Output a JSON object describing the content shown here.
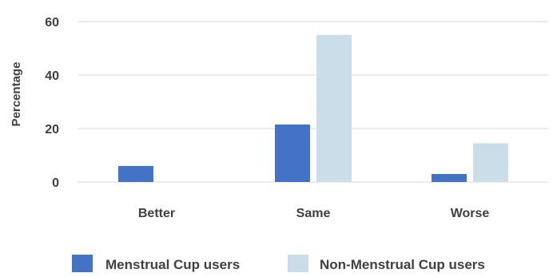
{
  "chart_data": {
    "type": "bar",
    "title": "",
    "xlabel": "",
    "ylabel": "Percentage",
    "categories": [
      "Better",
      "Same",
      "Worse"
    ],
    "series": [
      {
        "name": "Menstrual Cup users",
        "values": [
          6,
          21.5,
          3
        ]
      },
      {
        "name": "Non-Menstrual Cup users",
        "values": [
          0,
          55,
          14.5
        ]
      }
    ],
    "ylim": [
      0,
      60
    ],
    "yticks": [
      0,
      20,
      40,
      60
    ],
    "grid": true,
    "legend": "bottom",
    "colors": [
      "#4472c4",
      "#cadde9"
    ],
    "gridColor": "#d9d9d9"
  }
}
